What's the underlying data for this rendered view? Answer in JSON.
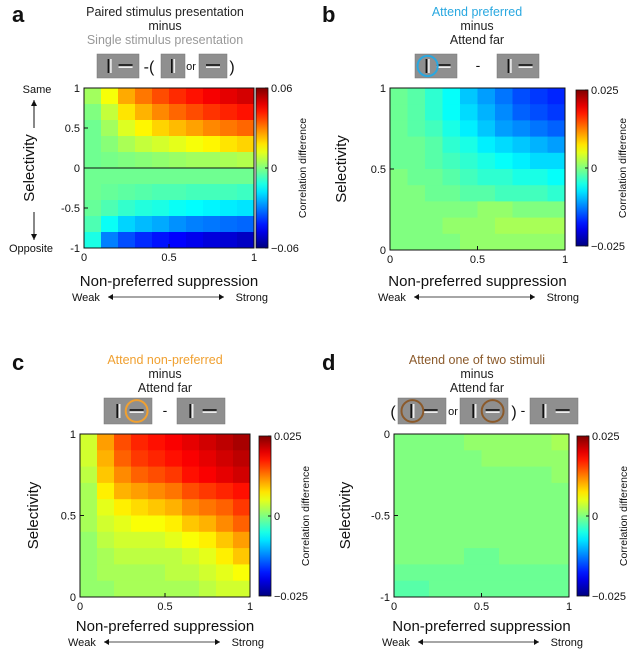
{
  "chart_data": [
    {
      "type": "heatmap",
      "panel": "a",
      "header": [
        "Paired stimulus presentation",
        "minus",
        "Single stimulus presentation"
      ],
      "header_colors": [
        "#222222",
        "#222222",
        "#999999"
      ],
      "stimulus_symbols": [
        "-(",
        "or",
        ")"
      ],
      "xlabel": "Non-preferred suppression",
      "ylabel": "Selectivity",
      "xlim": [
        0,
        1
      ],
      "ylim": [
        -1,
        1
      ],
      "xticks": [
        "0",
        "0.5",
        "1"
      ],
      "yticks": [
        "-1",
        "-0.5",
        "0",
        "0.5",
        "1"
      ],
      "y_annotations": [
        "Same",
        "Opposite"
      ],
      "x_annotations": [
        "Weak",
        "Strong"
      ],
      "colorbar": {
        "label": "Correlation difference",
        "min": -0.06,
        "max": 0.06,
        "ticks": [
          "0.06",
          "0",
          "−0.06"
        ]
      },
      "rows": 10,
      "cols": 10,
      "values": [
        [
          0.004,
          0.014,
          0.025,
          0.031,
          0.036,
          0.04,
          0.043,
          0.046,
          0.048,
          0.05
        ],
        [
          0.0,
          0.008,
          0.018,
          0.024,
          0.029,
          0.033,
          0.036,
          0.039,
          0.041,
          0.043
        ],
        [
          -0.002,
          0.004,
          0.011,
          0.016,
          0.02,
          0.023,
          0.026,
          0.029,
          0.031,
          0.033
        ],
        [
          -0.002,
          0.001,
          0.005,
          0.008,
          0.01,
          0.012,
          0.014,
          0.016,
          0.018,
          0.02
        ],
        [
          -0.002,
          -0.001,
          0.0,
          0.001,
          0.002,
          0.003,
          0.004,
          0.004,
          0.005,
          0.006
        ],
        [
          -0.002,
          -0.002,
          -0.002,
          -0.002,
          -0.002,
          -0.002,
          -0.002,
          -0.002,
          -0.002,
          -0.002
        ],
        [
          -0.002,
          -0.003,
          -0.004,
          -0.005,
          -0.006,
          -0.006,
          -0.007,
          -0.007,
          -0.007,
          -0.008
        ],
        [
          -0.003,
          -0.006,
          -0.009,
          -0.011,
          -0.012,
          -0.014,
          -0.015,
          -0.016,
          -0.017,
          -0.018
        ],
        [
          -0.006,
          -0.014,
          -0.02,
          -0.023,
          -0.025,
          -0.028,
          -0.03,
          -0.031,
          -0.032,
          -0.033
        ],
        [
          -0.012,
          -0.03,
          -0.036,
          -0.04,
          -0.043,
          -0.045,
          -0.047,
          -0.049,
          -0.05,
          -0.052
        ]
      ]
    },
    {
      "type": "heatmap",
      "panel": "b",
      "header": [
        "Attend preferred",
        "minus",
        "Attend far"
      ],
      "header_colors": [
        "#29a8e0",
        "#222222",
        "#222222"
      ],
      "stimulus_symbols": [
        "-"
      ],
      "xlabel": "Non-preferred suppression",
      "ylabel": "Selectivity",
      "xlim": [
        0,
        1
      ],
      "ylim": [
        0,
        1
      ],
      "xticks": [
        "0",
        "0.5",
        "1"
      ],
      "yticks": [
        "0",
        "0.5",
        "1"
      ],
      "x_annotations": [
        "Weak",
        "Strong"
      ],
      "colorbar": {
        "label": "Correlation difference",
        "min": -0.025,
        "max": 0.025,
        "ticks": [
          "0.025",
          "0",
          "−0.025"
        ]
      },
      "rows": 10,
      "cols": 10,
      "values": [
        [
          -0.001,
          -0.002,
          -0.004,
          -0.006,
          -0.009,
          -0.011,
          -0.013,
          -0.015,
          -0.016,
          -0.017
        ],
        [
          -0.001,
          -0.002,
          -0.004,
          -0.006,
          -0.008,
          -0.01,
          -0.012,
          -0.014,
          -0.015,
          -0.016
        ],
        [
          -0.001,
          -0.002,
          -0.003,
          -0.005,
          -0.007,
          -0.009,
          -0.011,
          -0.012,
          -0.013,
          -0.014
        ],
        [
          -0.001,
          -0.001,
          -0.002,
          -0.004,
          -0.005,
          -0.007,
          -0.008,
          -0.009,
          -0.01,
          -0.011
        ],
        [
          -0.001,
          -0.001,
          -0.002,
          -0.003,
          -0.004,
          -0.005,
          -0.006,
          -0.007,
          -0.008,
          -0.008
        ],
        [
          0.0,
          -0.001,
          -0.001,
          -0.002,
          -0.003,
          -0.004,
          -0.004,
          -0.005,
          -0.005,
          -0.006
        ],
        [
          0.0,
          0.0,
          -0.001,
          -0.001,
          -0.002,
          -0.002,
          -0.003,
          -0.003,
          -0.003,
          -0.004
        ],
        [
          0.0,
          0.0,
          0.0,
          0.0,
          0.0,
          0.001,
          0.001,
          0.0,
          0.0,
          0.0
        ],
        [
          0.0,
          0.0,
          0.0,
          0.001,
          0.001,
          0.001,
          0.002,
          0.002,
          0.002,
          0.002
        ],
        [
          0.0,
          0.0,
          0.0,
          0.0,
          0.001,
          0.001,
          0.001,
          0.001,
          0.001,
          0.001
        ]
      ]
    },
    {
      "type": "heatmap",
      "panel": "c",
      "header": [
        "Attend non-preferred",
        "minus",
        "Attend far"
      ],
      "header_colors": [
        "#f0a030",
        "#222222",
        "#222222"
      ],
      "stimulus_symbols": [
        "-"
      ],
      "xlabel": "Non-preferred suppression",
      "ylabel": "Selectivity",
      "xlim": [
        0,
        1
      ],
      "ylim": [
        0,
        1
      ],
      "xticks": [
        "0",
        "0.5",
        "1"
      ],
      "yticks": [
        "0",
        "0.5",
        "1"
      ],
      "x_annotations": [
        "Weak",
        "Strong"
      ],
      "colorbar": {
        "label": "Correlation difference",
        "min": -0.025,
        "max": 0.025,
        "ticks": [
          "0.025",
          "0",
          "−0.025"
        ]
      },
      "rows": 10,
      "cols": 10,
      "values": [
        [
          0.004,
          0.011,
          0.015,
          0.017,
          0.018,
          0.019,
          0.02,
          0.021,
          0.022,
          0.023
        ],
        [
          0.004,
          0.01,
          0.014,
          0.016,
          0.017,
          0.018,
          0.019,
          0.02,
          0.021,
          0.022
        ],
        [
          0.003,
          0.009,
          0.012,
          0.014,
          0.015,
          0.016,
          0.018,
          0.019,
          0.02,
          0.021
        ],
        [
          0.002,
          0.007,
          0.01,
          0.011,
          0.012,
          0.013,
          0.015,
          0.016,
          0.017,
          0.018
        ],
        [
          0.002,
          0.005,
          0.007,
          0.008,
          0.009,
          0.01,
          0.012,
          0.013,
          0.014,
          0.016
        ],
        [
          0.002,
          0.004,
          0.005,
          0.006,
          0.006,
          0.007,
          0.009,
          0.01,
          0.012,
          0.014
        ],
        [
          0.001,
          0.003,
          0.004,
          0.004,
          0.004,
          0.005,
          0.006,
          0.007,
          0.009,
          0.011
        ],
        [
          0.001,
          0.002,
          0.003,
          0.003,
          0.003,
          0.003,
          0.004,
          0.005,
          0.007,
          0.009
        ],
        [
          0.001,
          0.002,
          0.002,
          0.002,
          0.002,
          0.003,
          0.003,
          0.004,
          0.005,
          0.006
        ],
        [
          0.001,
          0.001,
          0.002,
          0.002,
          0.002,
          0.002,
          0.002,
          0.003,
          0.004,
          0.004
        ]
      ]
    },
    {
      "type": "heatmap",
      "panel": "d",
      "header": [
        "Attend one of two stimuli",
        "minus",
        "Attend far"
      ],
      "header_colors": [
        "#8b5a2b",
        "#222222",
        "#222222"
      ],
      "stimulus_symbols": [
        "(",
        "or",
        ")",
        "-"
      ],
      "xlabel": "Non-preferred suppression",
      "ylabel": "Selectivity",
      "xlim": [
        0,
        1
      ],
      "ylim": [
        -1,
        0
      ],
      "xticks": [
        "0",
        "0.5",
        "1"
      ],
      "yticks": [
        "-1",
        "-0.5",
        "0"
      ],
      "x_annotations": [
        "Weak",
        "Strong"
      ],
      "colorbar": {
        "label": "Correlation difference",
        "min": -0.025,
        "max": 0.025,
        "ticks": [
          "0.025",
          "0",
          "−0.025"
        ]
      },
      "rows": 10,
      "cols": 10,
      "values": [
        [
          0.0,
          0.0,
          0.0,
          0.0,
          0.001,
          0.001,
          0.001,
          0.001,
          0.001,
          0.002
        ],
        [
          0.0,
          0.0,
          0.0,
          0.0,
          0.0,
          0.001,
          0.001,
          0.001,
          0.001,
          0.001
        ],
        [
          0.0,
          0.0,
          0.0,
          0.0,
          0.0,
          0.0,
          0.0,
          0.0,
          0.0,
          0.001
        ],
        [
          0.0,
          0.0,
          0.0,
          0.0,
          0.0,
          0.0,
          0.0,
          0.0,
          0.0,
          0.0
        ],
        [
          0.0,
          0.0,
          0.0,
          0.0,
          0.0,
          0.0,
          0.0,
          0.0,
          0.0,
          0.0
        ],
        [
          0.0,
          0.0,
          0.0,
          0.0,
          0.0,
          0.0,
          0.0,
          0.0,
          0.0,
          0.0
        ],
        [
          0.0,
          0.0,
          0.0,
          0.0,
          0.0,
          0.0,
          0.0,
          0.0,
          0.0,
          0.0
        ],
        [
          0.0,
          0.0,
          0.0,
          0.0,
          -0.001,
          -0.001,
          0.0,
          0.0,
          0.0,
          0.0
        ],
        [
          -0.001,
          -0.001,
          -0.001,
          -0.001,
          -0.001,
          -0.001,
          -0.001,
          -0.001,
          -0.001,
          -0.001
        ],
        [
          -0.002,
          -0.002,
          -0.001,
          -0.001,
          -0.001,
          -0.001,
          -0.001,
          -0.001,
          -0.001,
          -0.001
        ]
      ]
    }
  ]
}
